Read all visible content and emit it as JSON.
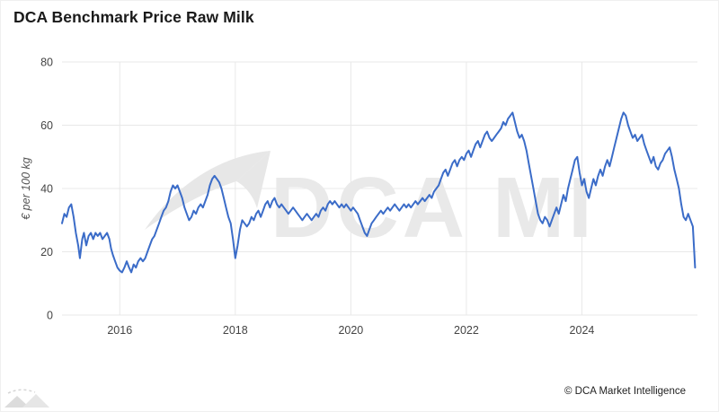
{
  "page": {
    "title": "DCA Benchmark Price Raw Milk",
    "watermark_text": "DCA MI",
    "copyright": "© DCA Market Intelligence"
  },
  "chart_data": {
    "type": "line",
    "title": "DCA Benchmark Price Raw Milk",
    "xlabel": "",
    "ylabel": "€ per 100 kg",
    "series_name": "DCA Benchmark Price Raw Milk",
    "xlim": [
      2015,
      2026
    ],
    "ylim": [
      0,
      80
    ],
    "yticks": [
      0,
      20,
      40,
      60,
      80
    ],
    "xticks": [
      2016,
      2018,
      2020,
      2022,
      2024
    ],
    "grid": true,
    "legend": "none",
    "line_color": "#3b6cc8",
    "points": [
      [
        2015.0,
        29
      ],
      [
        2015.04,
        32
      ],
      [
        2015.08,
        31
      ],
      [
        2015.12,
        34
      ],
      [
        2015.16,
        35
      ],
      [
        2015.2,
        31
      ],
      [
        2015.24,
        26
      ],
      [
        2015.28,
        22
      ],
      [
        2015.31,
        18
      ],
      [
        2015.35,
        24
      ],
      [
        2015.38,
        26
      ],
      [
        2015.42,
        22
      ],
      [
        2015.46,
        25
      ],
      [
        2015.5,
        26
      ],
      [
        2015.54,
        24
      ],
      [
        2015.58,
        26
      ],
      [
        2015.62,
        25
      ],
      [
        2015.66,
        26
      ],
      [
        2015.7,
        24
      ],
      [
        2015.74,
        25
      ],
      [
        2015.78,
        26
      ],
      [
        2015.82,
        24
      ],
      [
        2015.85,
        21
      ],
      [
        2015.88,
        19
      ],
      [
        2015.92,
        17
      ],
      [
        2015.96,
        15
      ],
      [
        2016.0,
        14
      ],
      [
        2016.04,
        13.5
      ],
      [
        2016.08,
        15
      ],
      [
        2016.12,
        17
      ],
      [
        2016.16,
        15
      ],
      [
        2016.2,
        13.5
      ],
      [
        2016.24,
        16
      ],
      [
        2016.28,
        15
      ],
      [
        2016.32,
        17
      ],
      [
        2016.36,
        18
      ],
      [
        2016.4,
        17
      ],
      [
        2016.44,
        18
      ],
      [
        2016.48,
        20
      ],
      [
        2016.52,
        22
      ],
      [
        2016.56,
        24
      ],
      [
        2016.6,
        25
      ],
      [
        2016.64,
        27
      ],
      [
        2016.68,
        29
      ],
      [
        2016.72,
        31
      ],
      [
        2016.76,
        33
      ],
      [
        2016.8,
        34
      ],
      [
        2016.84,
        36
      ],
      [
        2016.88,
        39
      ],
      [
        2016.92,
        41
      ],
      [
        2016.96,
        40
      ],
      [
        2017.0,
        41
      ],
      [
        2017.04,
        39
      ],
      [
        2017.08,
        37
      ],
      [
        2017.12,
        34
      ],
      [
        2017.16,
        32
      ],
      [
        2017.2,
        30
      ],
      [
        2017.24,
        31
      ],
      [
        2017.28,
        33
      ],
      [
        2017.32,
        32
      ],
      [
        2017.36,
        34
      ],
      [
        2017.4,
        35
      ],
      [
        2017.44,
        34
      ],
      [
        2017.48,
        36
      ],
      [
        2017.52,
        38
      ],
      [
        2017.56,
        41
      ],
      [
        2017.6,
        43
      ],
      [
        2017.64,
        44
      ],
      [
        2017.68,
        43
      ],
      [
        2017.72,
        42
      ],
      [
        2017.76,
        40
      ],
      [
        2017.8,
        37
      ],
      [
        2017.84,
        34
      ],
      [
        2017.88,
        31
      ],
      [
        2017.92,
        29
      ],
      [
        2017.96,
        24
      ],
      [
        2018.0,
        18
      ],
      [
        2018.04,
        22
      ],
      [
        2018.08,
        27
      ],
      [
        2018.12,
        30
      ],
      [
        2018.16,
        29
      ],
      [
        2018.2,
        28
      ],
      [
        2018.24,
        29
      ],
      [
        2018.28,
        31
      ],
      [
        2018.32,
        30
      ],
      [
        2018.36,
        32
      ],
      [
        2018.4,
        33
      ],
      [
        2018.44,
        31
      ],
      [
        2018.48,
        33
      ],
      [
        2018.52,
        35
      ],
      [
        2018.56,
        36
      ],
      [
        2018.6,
        34
      ],
      [
        2018.64,
        36
      ],
      [
        2018.68,
        37
      ],
      [
        2018.72,
        35
      ],
      [
        2018.76,
        34
      ],
      [
        2018.8,
        35
      ],
      [
        2018.84,
        34
      ],
      [
        2018.88,
        33
      ],
      [
        2018.92,
        32
      ],
      [
        2018.96,
        33
      ],
      [
        2019.0,
        34
      ],
      [
        2019.04,
        33
      ],
      [
        2019.08,
        32
      ],
      [
        2019.12,
        31
      ],
      [
        2019.16,
        30
      ],
      [
        2019.2,
        31
      ],
      [
        2019.24,
        32
      ],
      [
        2019.28,
        31
      ],
      [
        2019.32,
        30
      ],
      [
        2019.36,
        31
      ],
      [
        2019.4,
        32
      ],
      [
        2019.44,
        31
      ],
      [
        2019.48,
        33
      ],
      [
        2019.52,
        34
      ],
      [
        2019.56,
        33
      ],
      [
        2019.6,
        35
      ],
      [
        2019.64,
        36
      ],
      [
        2019.68,
        35
      ],
      [
        2019.72,
        36
      ],
      [
        2019.76,
        35
      ],
      [
        2019.8,
        34
      ],
      [
        2019.84,
        35
      ],
      [
        2019.88,
        34
      ],
      [
        2019.92,
        35
      ],
      [
        2019.96,
        34
      ],
      [
        2020.0,
        33
      ],
      [
        2020.04,
        34
      ],
      [
        2020.08,
        33
      ],
      [
        2020.12,
        32
      ],
      [
        2020.16,
        30
      ],
      [
        2020.2,
        28
      ],
      [
        2020.24,
        26
      ],
      [
        2020.28,
        25
      ],
      [
        2020.32,
        27
      ],
      [
        2020.36,
        29
      ],
      [
        2020.4,
        30
      ],
      [
        2020.44,
        31
      ],
      [
        2020.48,
        32
      ],
      [
        2020.52,
        33
      ],
      [
        2020.56,
        32
      ],
      [
        2020.6,
        33
      ],
      [
        2020.64,
        34
      ],
      [
        2020.68,
        33
      ],
      [
        2020.72,
        34
      ],
      [
        2020.76,
        35
      ],
      [
        2020.8,
        34
      ],
      [
        2020.84,
        33
      ],
      [
        2020.88,
        34
      ],
      [
        2020.92,
        35
      ],
      [
        2020.96,
        34
      ],
      [
        2021.0,
        35
      ],
      [
        2021.04,
        34
      ],
      [
        2021.08,
        35
      ],
      [
        2021.12,
        36
      ],
      [
        2021.16,
        35
      ],
      [
        2021.2,
        36
      ],
      [
        2021.24,
        37
      ],
      [
        2021.28,
        36
      ],
      [
        2021.32,
        37
      ],
      [
        2021.36,
        38
      ],
      [
        2021.4,
        37
      ],
      [
        2021.44,
        39
      ],
      [
        2021.48,
        40
      ],
      [
        2021.52,
        41
      ],
      [
        2021.56,
        43
      ],
      [
        2021.6,
        45
      ],
      [
        2021.64,
        46
      ],
      [
        2021.68,
        44
      ],
      [
        2021.72,
        46
      ],
      [
        2021.76,
        48
      ],
      [
        2021.8,
        49
      ],
      [
        2021.84,
        47
      ],
      [
        2021.88,
        49
      ],
      [
        2021.92,
        50
      ],
      [
        2021.96,
        49
      ],
      [
        2022.0,
        51
      ],
      [
        2022.04,
        52
      ],
      [
        2022.08,
        50
      ],
      [
        2022.12,
        52
      ],
      [
        2022.16,
        54
      ],
      [
        2022.2,
        55
      ],
      [
        2022.24,
        53
      ],
      [
        2022.28,
        55
      ],
      [
        2022.32,
        57
      ],
      [
        2022.36,
        58
      ],
      [
        2022.4,
        56
      ],
      [
        2022.44,
        55
      ],
      [
        2022.48,
        56
      ],
      [
        2022.52,
        57
      ],
      [
        2022.56,
        58
      ],
      [
        2022.6,
        59
      ],
      [
        2022.64,
        61
      ],
      [
        2022.68,
        60
      ],
      [
        2022.72,
        62
      ],
      [
        2022.76,
        63
      ],
      [
        2022.8,
        64
      ],
      [
        2022.84,
        61
      ],
      [
        2022.88,
        58
      ],
      [
        2022.92,
        56
      ],
      [
        2022.96,
        57
      ],
      [
        2023.0,
        55
      ],
      [
        2023.04,
        52
      ],
      [
        2023.08,
        48
      ],
      [
        2023.12,
        44
      ],
      [
        2023.16,
        40
      ],
      [
        2023.2,
        36
      ],
      [
        2023.24,
        32
      ],
      [
        2023.28,
        30
      ],
      [
        2023.32,
        29
      ],
      [
        2023.36,
        31
      ],
      [
        2023.4,
        30
      ],
      [
        2023.44,
        28
      ],
      [
        2023.48,
        30
      ],
      [
        2023.52,
        32
      ],
      [
        2023.56,
        34
      ],
      [
        2023.6,
        32
      ],
      [
        2023.64,
        35
      ],
      [
        2023.68,
        38
      ],
      [
        2023.72,
        36
      ],
      [
        2023.76,
        40
      ],
      [
        2023.8,
        43
      ],
      [
        2023.84,
        46
      ],
      [
        2023.88,
        49
      ],
      [
        2023.92,
        50
      ],
      [
        2023.96,
        45
      ],
      [
        2024.0,
        41
      ],
      [
        2024.04,
        43
      ],
      [
        2024.08,
        39
      ],
      [
        2024.12,
        37
      ],
      [
        2024.16,
        40
      ],
      [
        2024.2,
        43
      ],
      [
        2024.24,
        41
      ],
      [
        2024.28,
        44
      ],
      [
        2024.32,
        46
      ],
      [
        2024.36,
        44
      ],
      [
        2024.4,
        47
      ],
      [
        2024.44,
        49
      ],
      [
        2024.48,
        47
      ],
      [
        2024.52,
        50
      ],
      [
        2024.56,
        53
      ],
      [
        2024.6,
        56
      ],
      [
        2024.64,
        59
      ],
      [
        2024.68,
        62
      ],
      [
        2024.72,
        64
      ],
      [
        2024.76,
        63
      ],
      [
        2024.8,
        60
      ],
      [
        2024.84,
        58
      ],
      [
        2024.88,
        56
      ],
      [
        2024.92,
        57
      ],
      [
        2024.96,
        55
      ],
      [
        2025.0,
        56
      ],
      [
        2025.04,
        57
      ],
      [
        2025.08,
        54
      ],
      [
        2025.12,
        52
      ],
      [
        2025.16,
        50
      ],
      [
        2025.2,
        48
      ],
      [
        2025.24,
        50
      ],
      [
        2025.28,
        47
      ],
      [
        2025.32,
        46
      ],
      [
        2025.36,
        48
      ],
      [
        2025.4,
        49
      ],
      [
        2025.44,
        51
      ],
      [
        2025.48,
        52
      ],
      [
        2025.52,
        53
      ],
      [
        2025.56,
        50
      ],
      [
        2025.6,
        46
      ],
      [
        2025.64,
        43
      ],
      [
        2025.68,
        40
      ],
      [
        2025.72,
        35
      ],
      [
        2025.76,
        31
      ],
      [
        2025.8,
        30
      ],
      [
        2025.84,
        32
      ],
      [
        2025.88,
        30
      ],
      [
        2025.92,
        28
      ],
      [
        2025.96,
        15
      ]
    ]
  }
}
